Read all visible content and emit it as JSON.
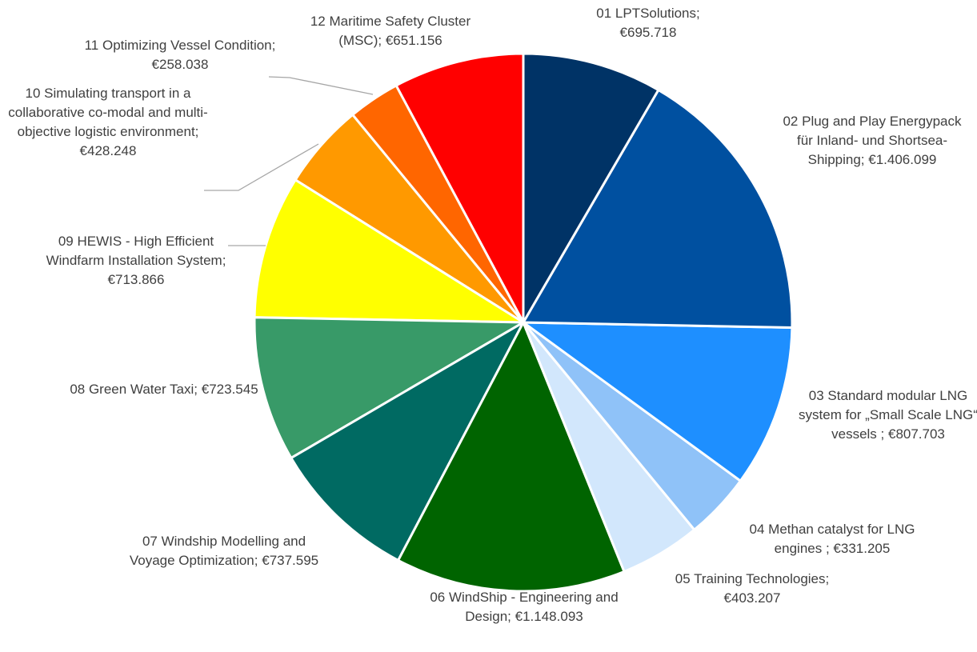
{
  "chart_data": {
    "type": "pie",
    "categories": [
      "01 LPTSolutions;",
      "02 Plug and Play Energypack für Inland- und Shortsea-Shipping;",
      "03 Standard modular LNG system for „Small Scale LNG“ vessels ;",
      "04 Methan catalyst for LNG engines  ;",
      "05 Training Technologies;",
      "06 WindShip - Engineering and Design;",
      "07 Windship Modelling and Voyage Optimization;",
      "08 Green Water Taxi;",
      "09 HEWIS - High Efficient Windfarm Installation System;",
      "10 Simulating transport in a collaborative co-modal and multi-objective logistic environment;",
      "11 Optimizing Vessel Condition;",
      "12 Maritime Safety Cluster (MSC);"
    ],
    "values": [
      695718,
      1406099,
      807703,
      331205,
      403207,
      1148093,
      737595,
      723545,
      713866,
      428248,
      258038,
      651156
    ],
    "value_labels": [
      "€695.718",
      "€1.406.099",
      "€807.703",
      "€331.205",
      "€403.207",
      "€1.148.093",
      "€737.595",
      "€723.545",
      "€713.866",
      "€428.248",
      "€258.038",
      "€651.156"
    ],
    "colors": [
      "#003366",
      "#0050a0",
      "#1e8fff",
      "#8fc2f8",
      "#d2e7fc",
      "#006400",
      "#006a62",
      "#389a68",
      "#ffff00",
      "#ff9900",
      "#ff6600",
      "#ff0000"
    ]
  }
}
